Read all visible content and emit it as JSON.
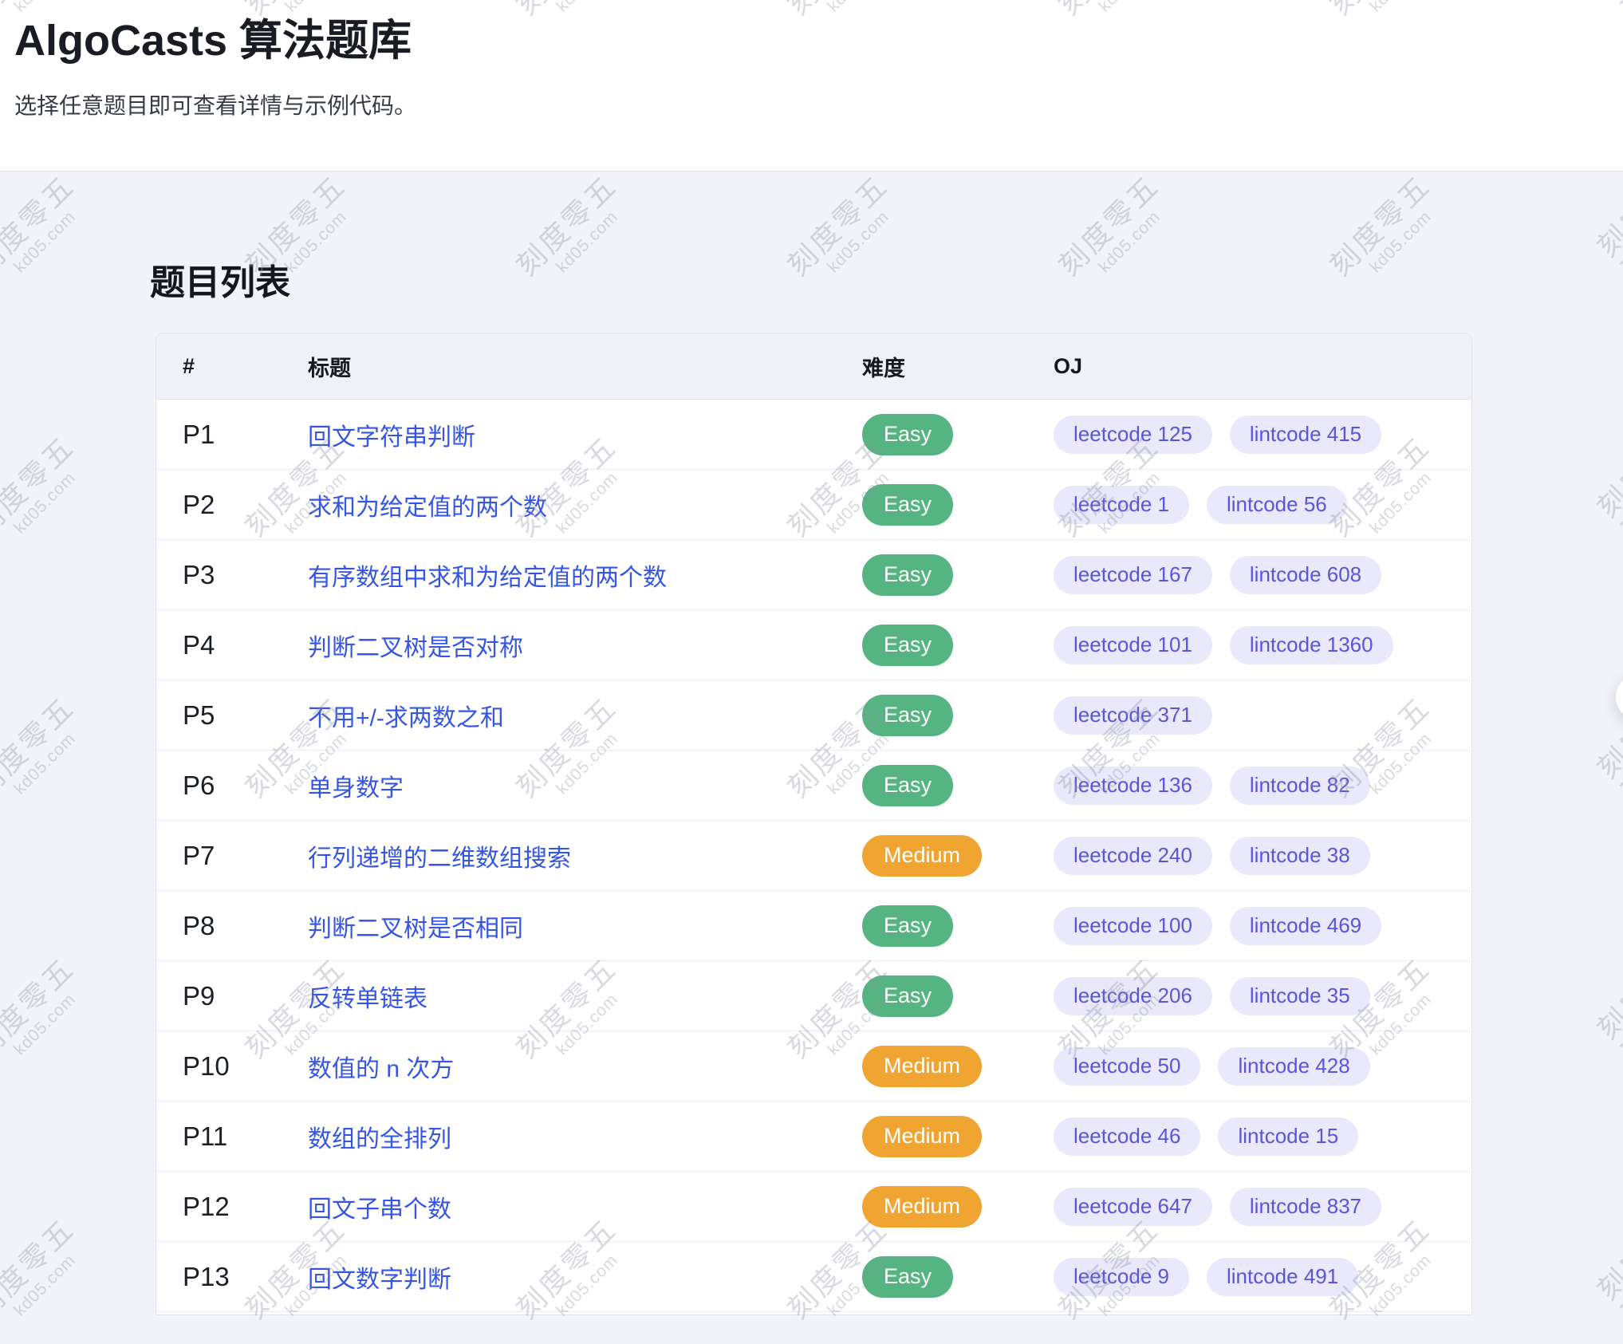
{
  "page": {
    "title": "AlgoCasts 算法题库",
    "subtitle": "选择任意题目即可查看详情与示例代码。",
    "section_title": "题目列表"
  },
  "watermark": {
    "line1": "刻度零五",
    "line2": "kd05.com"
  },
  "colors": {
    "page_bg": "#f2f3f9",
    "header_row_bg": "#f0f1f8",
    "link": "#3556e3",
    "easy": "#55b482",
    "medium": "#f0a431",
    "pill_bg": "#e9e9fb",
    "pill_text": "#5a55d8"
  },
  "table": {
    "columns": [
      "#",
      "标题",
      "难度",
      "OJ"
    ],
    "rows": [
      {
        "id": "P1",
        "title": "回文字符串判断",
        "difficulty": "Easy",
        "oj": [
          "leetcode 125",
          "lintcode 415"
        ]
      },
      {
        "id": "P2",
        "title": "求和为给定值的两个数",
        "difficulty": "Easy",
        "oj": [
          "leetcode 1",
          "lintcode 56"
        ]
      },
      {
        "id": "P3",
        "title": "有序数组中求和为给定值的两个数",
        "difficulty": "Easy",
        "oj": [
          "leetcode 167",
          "lintcode 608"
        ]
      },
      {
        "id": "P4",
        "title": "判断二叉树是否对称",
        "difficulty": "Easy",
        "oj": [
          "leetcode 101",
          "lintcode 1360"
        ]
      },
      {
        "id": "P5",
        "title": "不用+/-求两数之和",
        "difficulty": "Easy",
        "oj": [
          "leetcode 371"
        ]
      },
      {
        "id": "P6",
        "title": "单身数字",
        "difficulty": "Easy",
        "oj": [
          "leetcode 136",
          "lintcode 82"
        ]
      },
      {
        "id": "P7",
        "title": "行列递增的二维数组搜索",
        "difficulty": "Medium",
        "oj": [
          "leetcode 240",
          "lintcode 38"
        ]
      },
      {
        "id": "P8",
        "title": "判断二叉树是否相同",
        "difficulty": "Easy",
        "oj": [
          "leetcode 100",
          "lintcode 469"
        ]
      },
      {
        "id": "P9",
        "title": "反转单链表",
        "difficulty": "Easy",
        "oj": [
          "leetcode 206",
          "lintcode 35"
        ]
      },
      {
        "id": "P10",
        "title": "数值的 n 次方",
        "difficulty": "Medium",
        "oj": [
          "leetcode 50",
          "lintcode 428"
        ]
      },
      {
        "id": "P11",
        "title": "数组的全排列",
        "difficulty": "Medium",
        "oj": [
          "leetcode 46",
          "lintcode 15"
        ]
      },
      {
        "id": "P12",
        "title": "回文子串个数",
        "difficulty": "Medium",
        "oj": [
          "leetcode 647",
          "lintcode 837"
        ]
      },
      {
        "id": "P13",
        "title": "回文数字判断",
        "difficulty": "Easy",
        "oj": [
          "leetcode 9",
          "lintcode 491"
        ]
      }
    ]
  }
}
